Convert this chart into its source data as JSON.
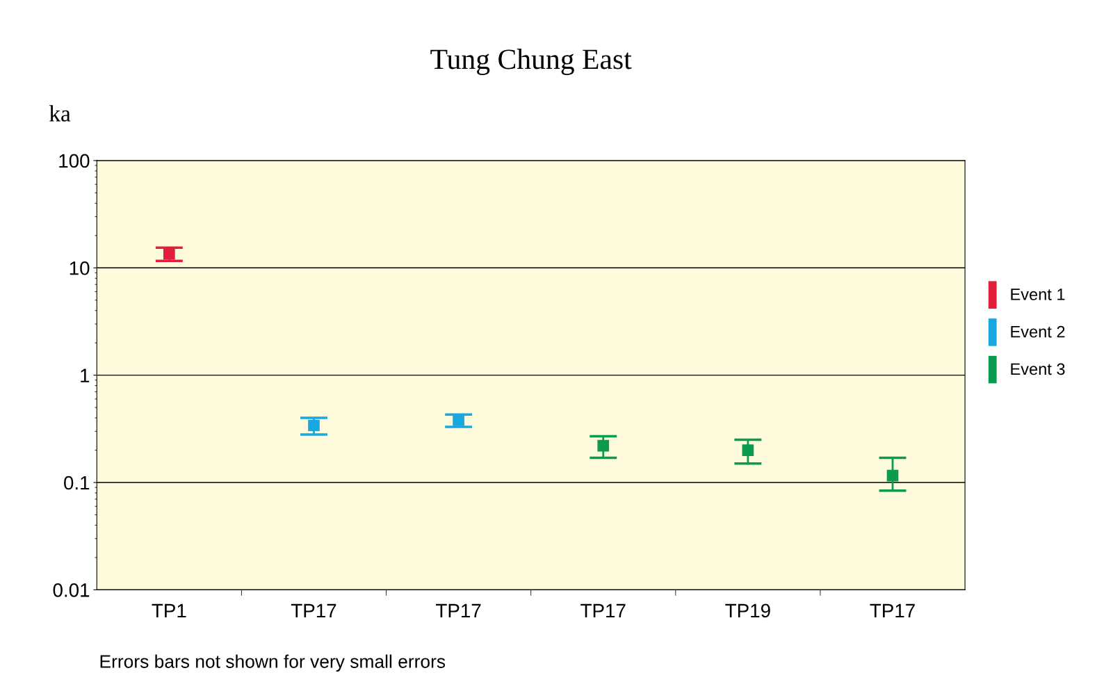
{
  "chart_data": {
    "type": "scatter",
    "title": "Tung Chung East",
    "ylabel": "ka",
    "categories": [
      "TP1",
      "TP17",
      "TP17",
      "TP17",
      "TP19",
      "TP17"
    ],
    "series": [
      {
        "name": "Event 1",
        "color": "#e0203a",
        "values": [
          13.5,
          null,
          null,
          null,
          null,
          null
        ],
        "errors": [
          [
            11.6,
            15.4
          ],
          null,
          null,
          null,
          null,
          null
        ]
      },
      {
        "name": "Event 2",
        "color": "#1aa7e0",
        "values": [
          null,
          0.34,
          0.38,
          null,
          null,
          null
        ],
        "errors": [
          null,
          [
            0.28,
            0.4
          ],
          [
            0.33,
            0.43
          ],
          null,
          null,
          null
        ]
      },
      {
        "name": "Event 3",
        "color": "#0a9a50",
        "values": [
          null,
          null,
          null,
          0.22,
          0.2,
          0.116
        ],
        "errors": [
          null,
          null,
          null,
          [
            0.17,
            0.27
          ],
          [
            0.15,
            0.25
          ],
          [
            0.084,
            0.17
          ]
        ]
      }
    ],
    "log": "y",
    "ylim": [
      0.01,
      100
    ],
    "yticks": [
      0.01,
      0.1,
      1,
      10,
      100
    ],
    "grid": "y",
    "legend": "right",
    "marker": "square",
    "annotations": [
      "Errors bars not shown for very small errors"
    ]
  }
}
